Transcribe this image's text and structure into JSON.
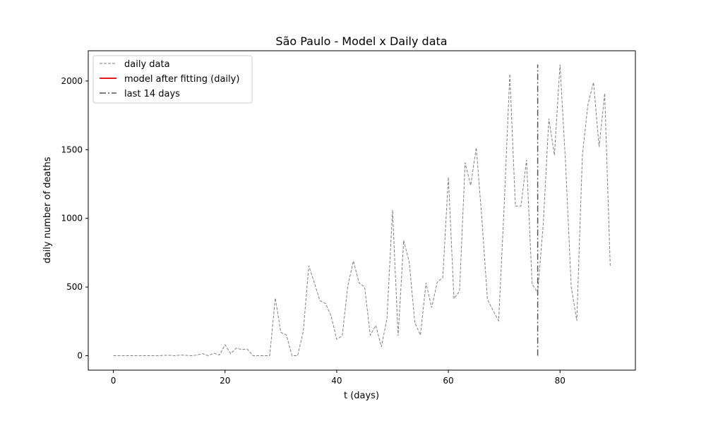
{
  "chart_data": {
    "type": "line",
    "title": "São Paulo - Model x Daily data",
    "xlabel": "t (days)",
    "ylabel": "daily number of deaths",
    "xlim": [
      -4.5,
      93.5
    ],
    "ylim": [
      -105,
      2220
    ],
    "x_ticks": [
      0,
      20,
      40,
      60,
      80
    ],
    "y_ticks": [
      0,
      500,
      1000,
      1500,
      2000
    ],
    "grid": false,
    "legend_position": "top-left",
    "series": [
      {
        "name": "daily data",
        "style": "dashed",
        "color": "#808080",
        "x": [
          0,
          1,
          2,
          3,
          4,
          5,
          6,
          7,
          8,
          9,
          10,
          11,
          12,
          13,
          14,
          15,
          16,
          17,
          18,
          19,
          20,
          21,
          22,
          23,
          24,
          25,
          26,
          27,
          28,
          29,
          30,
          31,
          32,
          33,
          34,
          35,
          36,
          37,
          38,
          39,
          40,
          41,
          42,
          43,
          44,
          45,
          46,
          47,
          48,
          49,
          50,
          51,
          52,
          53,
          54,
          55,
          56,
          57,
          58,
          59,
          60,
          61,
          62,
          63,
          64,
          65,
          66,
          67,
          68,
          69,
          70,
          71,
          72,
          73,
          74,
          75,
          76,
          77,
          78,
          79,
          80,
          81,
          82,
          83,
          84,
          85,
          86,
          87,
          88,
          89
        ],
        "y": [
          0,
          0,
          0,
          0,
          0,
          0,
          0,
          0,
          0,
          3,
          3,
          0,
          5,
          3,
          0,
          5,
          15,
          0,
          18,
          5,
          80,
          15,
          55,
          45,
          48,
          0,
          0,
          0,
          0,
          420,
          170,
          150,
          0,
          0,
          175,
          655,
          530,
          400,
          380,
          290,
          120,
          145,
          510,
          690,
          530,
          500,
          150,
          220,
          65,
          270,
          1060,
          145,
          840,
          680,
          240,
          150,
          530,
          350,
          535,
          570,
          1300,
          415,
          470,
          1405,
          1240,
          1515,
          1000,
          410,
          330,
          255,
          1100,
          2050,
          1090,
          1090,
          1425,
          520,
          460,
          960,
          1725,
          1460,
          2120,
          1400,
          500,
          255,
          1460,
          1830,
          1990,
          1520,
          1910,
          645
        ]
      },
      {
        "name": "model after fitting (daily)",
        "style": "solid",
        "color": "#e31a1c",
        "x": [],
        "y": []
      },
      {
        "name": "last 14 days",
        "style": "dashdot",
        "color": "#555555",
        "x": [
          76,
          76
        ],
        "y": [
          0,
          2120
        ]
      }
    ]
  }
}
